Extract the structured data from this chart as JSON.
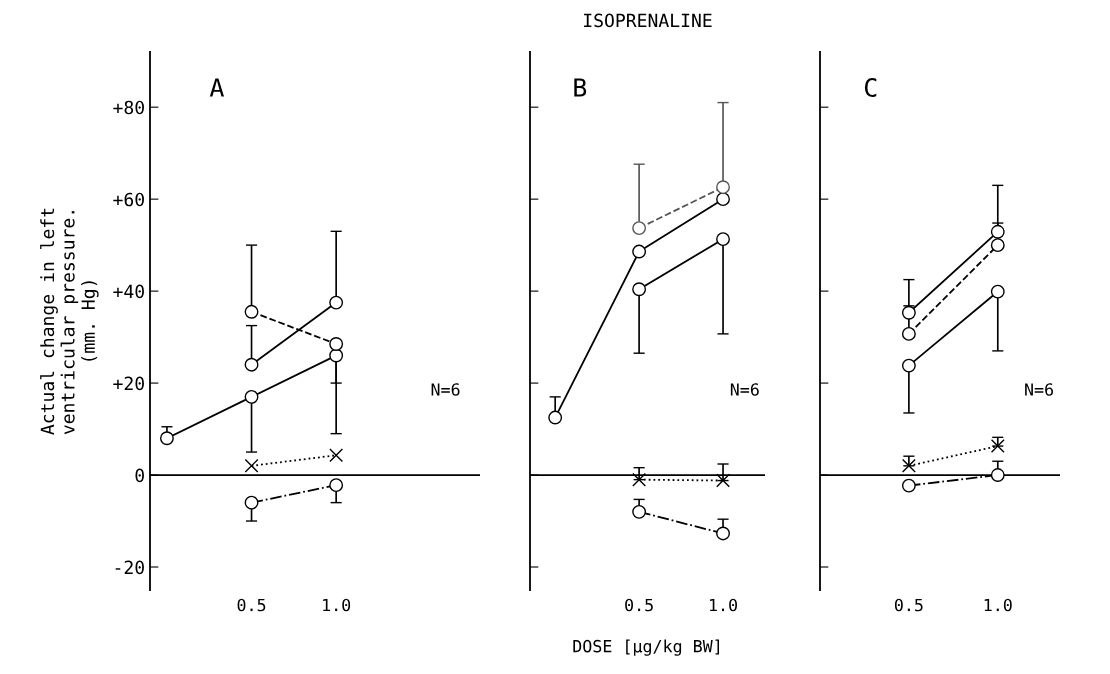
{
  "chart_data": [
    {
      "type": "line",
      "ylabel": "Actual change in left\nventricular pressure.\n(mm. Hg)",
      "categories": [
        null,
        "0.5",
        "1.0"
      ],
      "ylim": [
        -25,
        92
      ],
      "yticks": [
        {
          "value": 80,
          "label": "+80"
        },
        {
          "value": 60,
          "label": "+60"
        },
        {
          "value": 40,
          "label": "+40"
        },
        {
          "value": 20,
          "label": "+20"
        },
        0,
        {
          "value": -20,
          "label": "-20"
        }
      ],
      "grid": false,
      "ref_lines": [
        {
          "axis": "y",
          "value": 0,
          "color": "#000000"
        }
      ],
      "annotations": [
        "A",
        "N=6"
      ],
      "series": [
        {
          "color": "#000000",
          "marker": "circle",
          "line_style": "solid",
          "values": [
            8,
            17,
            26
          ],
          "errors": [
            [
              8,
              10.5
            ],
            [
              5,
              17
            ],
            [
              9,
              26
            ]
          ]
        },
        {
          "color": "#000000",
          "marker": "circle",
          "line_style": "solid",
          "values": [
            null,
            24,
            37.5
          ],
          "errors": [
            null,
            [
              24,
              32.5
            ],
            [
              37.5,
              53
            ]
          ]
        },
        {
          "color": "#000000",
          "marker": "circle",
          "line_style": "dashed",
          "values": [
            null,
            35.5,
            28.5
          ],
          "errors": [
            null,
            [
              35.5,
              50
            ],
            [
              20,
              28.5
            ]
          ]
        },
        {
          "color": "#000000",
          "marker": "cross",
          "line_style": "dotted",
          "values": [
            null,
            2,
            4.3
          ]
        },
        {
          "color": "#000000",
          "marker": "circle",
          "line_style": "dashdot",
          "values": [
            null,
            -6,
            -2.2
          ],
          "errors": [
            null,
            [
              -10,
              -6
            ],
            [
              -6,
              -2.2
            ]
          ]
        }
      ]
    },
    {
      "type": "line",
      "title": "ISOPRENALINE",
      "xlabel": "DOSE [µg/kg BW]",
      "categories": [
        null,
        "0.5",
        "1.0"
      ],
      "ylim": [
        -25,
        92
      ],
      "yticks": [
        {
          "value": 80,
          "label": null
        },
        {
          "value": 60,
          "label": null
        },
        {
          "value": 40,
          "label": null
        },
        {
          "value": 20,
          "label": null
        },
        {
          "value": 0,
          "label": null
        },
        {
          "value": -20,
          "label": null
        }
      ],
      "tick_labels": "x",
      "grid": false,
      "ref_lines": [
        {
          "axis": "y",
          "value": 0,
          "color": "#000000"
        }
      ],
      "annotations": [
        "B",
        "N=6"
      ],
      "series": [
        {
          "color": "#000000",
          "marker": "circle",
          "line_style": "solid",
          "values": [
            12.5,
            48.6,
            60
          ],
          "errors": [
            [
              12.5,
              17
            ],
            null,
            null
          ]
        },
        {
          "color": "#000000",
          "marker": "circle",
          "line_style": "solid",
          "values": [
            null,
            40.4,
            51.3
          ],
          "errors": [
            null,
            [
              26.5,
              40.4
            ],
            [
              30.7,
              51.3
            ]
          ]
        },
        {
          "color": "#555555",
          "marker": "circle",
          "line_style": "dashed",
          "values": [
            null,
            53.7,
            62.6
          ],
          "errors": [
            null,
            [
              53.7,
              67.6
            ],
            [
              62.6,
              81
            ]
          ]
        },
        {
          "color": "#000000",
          "marker": "cross",
          "line_style": "dotted",
          "values": [
            null,
            -1,
            -1.2
          ],
          "errors": [
            null,
            [
              -1,
              1.6
            ],
            [
              -1.2,
              2.4
            ]
          ]
        },
        {
          "color": "#000000",
          "marker": "circle",
          "line_style": "dashdot",
          "values": [
            null,
            -8,
            -12.7
          ],
          "errors": [
            null,
            [
              -8,
              -5.3
            ],
            [
              -12.7,
              -9.6
            ]
          ]
        }
      ]
    },
    {
      "type": "line",
      "categories": [
        null,
        "0.5",
        "1.0"
      ],
      "ylim": [
        -25,
        92
      ],
      "yticks": [
        {
          "value": 80,
          "label": null
        },
        {
          "value": 60,
          "label": null
        },
        {
          "value": 40,
          "label": null
        },
        {
          "value": 20,
          "label": null
        },
        {
          "value": 0,
          "label": null
        },
        {
          "value": -20,
          "label": null
        }
      ],
      "tick_labels": "x",
      "grid": false,
      "ref_lines": [
        {
          "axis": "y",
          "value": 0,
          "color": "#000000"
        }
      ],
      "annotations": [
        "C",
        "N=6"
      ],
      "series": [
        {
          "color": "#000000",
          "marker": "circle",
          "line_style": "solid",
          "values": [
            null,
            35.3,
            52.9
          ],
          "errors": [
            null,
            [
              35.3,
              42.5
            ],
            [
              52.9,
              63
            ]
          ]
        },
        {
          "color": "#000000",
          "marker": "circle",
          "line_style": "solid",
          "values": [
            null,
            23.8,
            39.9
          ],
          "errors": [
            null,
            [
              13.5,
              23.8
            ],
            [
              27,
              39.9
            ]
          ]
        },
        {
          "color": "#000000",
          "marker": "circle",
          "line_style": "dashed",
          "values": [
            null,
            30.7,
            50
          ],
          "errors": [
            null,
            [
              30.7,
              36.8
            ],
            [
              50,
              54.8
            ]
          ]
        },
        {
          "color": "#000000",
          "marker": "cross",
          "line_style": "dotted",
          "values": [
            null,
            2,
            6.3
          ],
          "errors": [
            null,
            [
              2,
              4.1
            ],
            [
              6.3,
              8.2
            ]
          ]
        },
        {
          "color": "#000000",
          "marker": "circle",
          "line_style": "dashdot",
          "values": [
            null,
            -2.3,
            0
          ],
          "errors": [
            null,
            null,
            [
              0,
              3
            ]
          ]
        }
      ]
    }
  ]
}
